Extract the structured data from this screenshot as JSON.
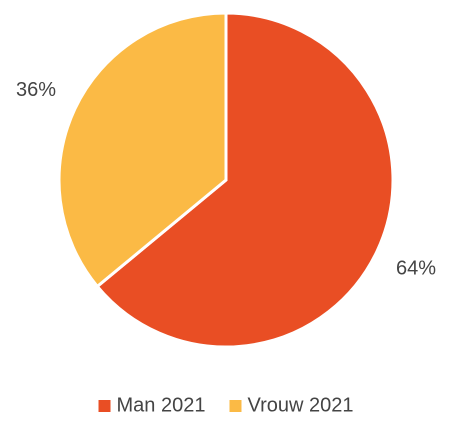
{
  "chart_data": {
    "type": "pie",
    "categories": [
      "Man 2021",
      "Vrouw 2021"
    ],
    "values": [
      64,
      36
    ],
    "value_labels": [
      "64%",
      "36%"
    ],
    "colors": [
      "#e94e24",
      "#fbba45"
    ],
    "legend": "bottom"
  }
}
